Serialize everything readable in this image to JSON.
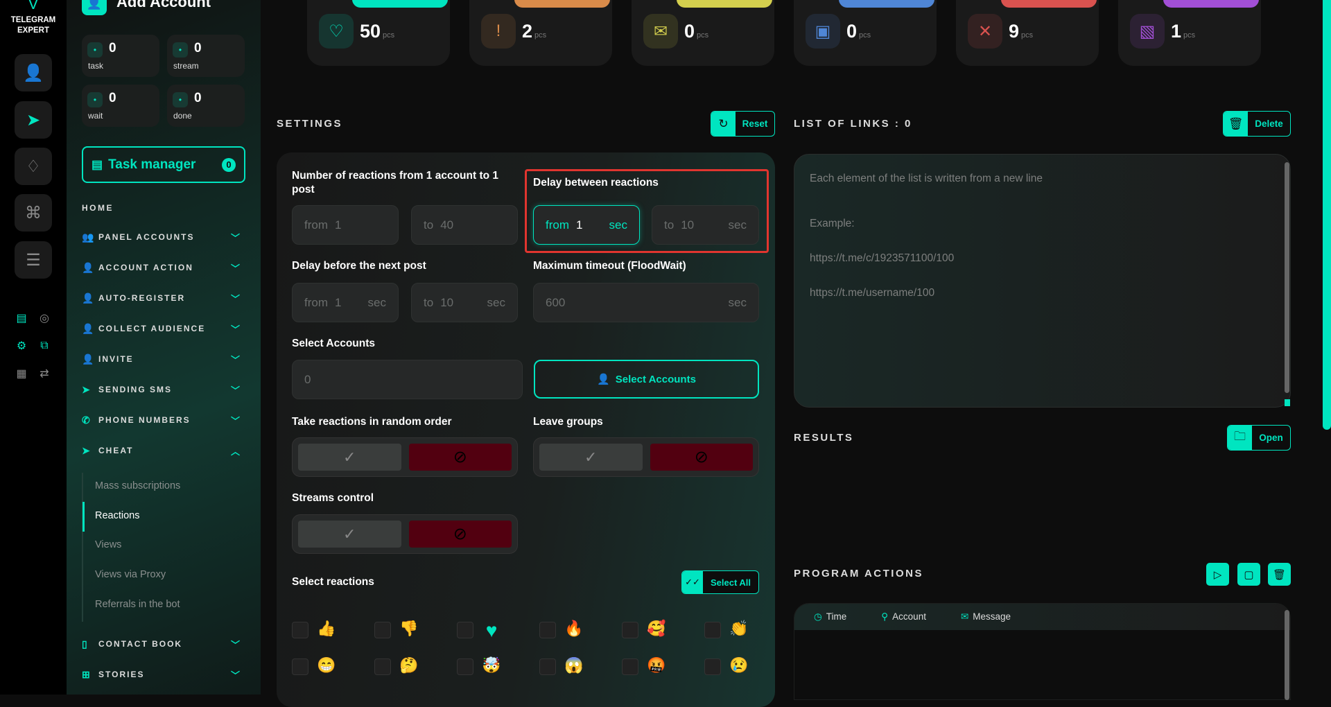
{
  "brand": {
    "name_line1": "TELEGRAM",
    "name_line2": "EXPERT"
  },
  "rail": {
    "buttons": [
      {
        "icon": "user-icon",
        "glyph": "👤"
      },
      {
        "icon": "send-icon",
        "glyph": "➤",
        "active": true
      },
      {
        "icon": "diamond-icon",
        "glyph": "♢"
      },
      {
        "icon": "command-icon",
        "glyph": "⌘"
      },
      {
        "icon": "database-icon",
        "glyph": "☰"
      }
    ],
    "tools": [
      {
        "icon": "server-check-icon",
        "glyph": "▤",
        "color": "#00e5c0"
      },
      {
        "icon": "user-network-icon",
        "glyph": "◎",
        "color": "#8a8a8a"
      },
      {
        "icon": "settings-gear-icon",
        "glyph": "⚙",
        "color": "#00e5c0"
      },
      {
        "icon": "code-window-icon",
        "glyph": "⧉",
        "color": "#00e5c0"
      },
      {
        "icon": "checklist-icon",
        "glyph": "▦",
        "color": "#8a8a8a"
      },
      {
        "icon": "swap-icon",
        "glyph": "⇄",
        "color": "#8a8a8a"
      }
    ]
  },
  "sidebar": {
    "add_account": "Add Account",
    "stats": [
      {
        "label": "task",
        "value": "0",
        "icon": "tasks-icon"
      },
      {
        "label": "stream",
        "value": "0",
        "icon": "share-icon"
      },
      {
        "label": "wait",
        "value": "0",
        "icon": "hourglass-icon"
      },
      {
        "label": "done",
        "value": "0",
        "icon": "check-circle-icon"
      }
    ],
    "task_manager": {
      "label": "Task manager",
      "count": "0"
    },
    "home": "HOME",
    "menu": [
      {
        "label": "PANEL ACCOUNTS",
        "icon": "users-icon",
        "glyph": "👥",
        "open": false
      },
      {
        "label": "ACCOUNT ACTION",
        "icon": "user-icon",
        "glyph": "👤",
        "open": false
      },
      {
        "label": "AUTO-REGISTER",
        "icon": "user-plus-icon",
        "glyph": "👤",
        "open": false
      },
      {
        "label": "COLLECT AUDIENCE",
        "icon": "user-list-icon",
        "glyph": "👤",
        "open": false
      },
      {
        "label": "INVITE",
        "icon": "user-list-icon",
        "glyph": "👤",
        "open": false
      },
      {
        "label": "SENDING SMS",
        "icon": "send-icon",
        "glyph": "➤",
        "open": false
      },
      {
        "label": "PHONE NUMBERS",
        "icon": "phone-icon",
        "glyph": "✆",
        "open": false
      },
      {
        "label": "CHEAT",
        "icon": "send-plus-icon",
        "glyph": "➤",
        "open": true
      }
    ],
    "submenu": [
      {
        "label": "Mass subscriptions"
      },
      {
        "label": "Reactions",
        "active": true
      },
      {
        "label": "Views"
      },
      {
        "label": "Views via Proxy"
      },
      {
        "label": "Referrals in the bot"
      }
    ],
    "menu_after": [
      {
        "label": "CONTACT BOOK",
        "icon": "notebook-icon",
        "glyph": "▯"
      },
      {
        "label": "STORIES",
        "icon": "plus-square-icon",
        "glyph": "⊞"
      }
    ]
  },
  "top_stats": [
    {
      "value": "50",
      "unit": "pcs",
      "color": "#00e5c0",
      "icon": "user-heart-icon",
      "glyph": "♡"
    },
    {
      "value": "2",
      "unit": "pcs",
      "color": "#d98b4a",
      "icon": "warning-octagon-icon",
      "glyph": "!"
    },
    {
      "value": "0",
      "unit": "pcs",
      "color": "#d4cf4e",
      "icon": "mail-warning-icon",
      "glyph": "✉"
    },
    {
      "value": "0",
      "unit": "pcs",
      "color": "#4f86d6",
      "icon": "folder-user-icon",
      "glyph": "▣"
    },
    {
      "value": "9",
      "unit": "pcs",
      "color": "#d9524f",
      "icon": "user-x-icon",
      "glyph": "✕"
    },
    {
      "value": "1",
      "unit": "pcs",
      "color": "#a24fd6",
      "icon": "ticket-icon",
      "glyph": "▧"
    }
  ],
  "settings": {
    "title": "SETTINGS",
    "reset": "Reset",
    "reactions_per_post": {
      "label": "Number of reactions from 1 account to 1 post",
      "from_key": "from",
      "from": "1",
      "to_key": "to",
      "to": "40"
    },
    "delay_between": {
      "label": "Delay between reactions",
      "from_key": "from",
      "from": "1",
      "to_key": "to",
      "to": "10",
      "unit": "sec"
    },
    "delay_next_post": {
      "label": "Delay before the next post",
      "from_key": "from",
      "from": "1",
      "to_key": "to",
      "to": "10",
      "unit": "sec"
    },
    "max_timeout": {
      "label": "Maximum timeout (FloodWait)",
      "value": "600",
      "unit": "sec"
    },
    "select_accounts": {
      "label": "Select Accounts",
      "value": "0",
      "button": "Select Accounts"
    },
    "random_order": {
      "label": "Take reactions in random order",
      "state": "off"
    },
    "leave_groups": {
      "label": "Leave groups",
      "state": "off"
    },
    "streams_control": {
      "label": "Streams control",
      "state": "off"
    },
    "select_reactions": {
      "label": "Select reactions",
      "select_all": "Select All"
    },
    "reactions": [
      {
        "emoji": "👍",
        "name": "thumbs-up"
      },
      {
        "emoji": "👎",
        "name": "thumbs-down"
      },
      {
        "emoji": "♥",
        "name": "heart",
        "color": "#00e5c0"
      },
      {
        "emoji": "🔥",
        "name": "fire"
      },
      {
        "emoji": "🥰",
        "name": "smiling-hearts"
      },
      {
        "emoji": "👏",
        "name": "clap"
      },
      {
        "emoji": "😁",
        "name": "grin"
      },
      {
        "emoji": "🤔",
        "name": "thinking"
      },
      {
        "emoji": "🤯",
        "name": "mind-blown"
      },
      {
        "emoji": "😱",
        "name": "scream"
      },
      {
        "emoji": "🤬",
        "name": "cursing"
      },
      {
        "emoji": "😢",
        "name": "crying"
      }
    ]
  },
  "links": {
    "title": "LIST OF LINKS : 0",
    "delete": "Delete",
    "placeholder_lines": [
      "Each element of the list is written from a new line",
      " Example:",
      " https://t.me/c/1923571100/100",
      " https://t.me/username/100"
    ]
  },
  "results": {
    "title": "RESULTS",
    "open": "Open"
  },
  "program_actions": {
    "title": "PROGRAM ACTIONS",
    "columns": [
      "Time",
      "Account",
      "Message"
    ]
  },
  "colors": {
    "accent": "#00e5c0",
    "danger_box": "#e0352f",
    "toggle_off": "#520010"
  }
}
